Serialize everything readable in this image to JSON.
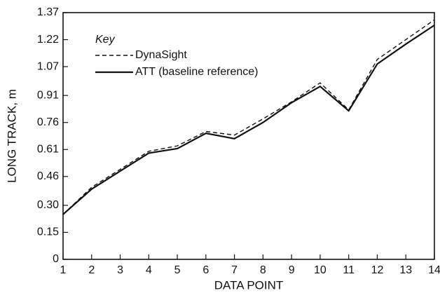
{
  "chart_data": {
    "type": "line",
    "x_label": "DATA POINT",
    "y_label": "LONG TRACK, m",
    "legend_title": "Key",
    "x": [
      1,
      2,
      3,
      4,
      5,
      6,
      7,
      8,
      9,
      10,
      11,
      12,
      13,
      14
    ],
    "series": [
      {
        "name": "DynaSight",
        "color": "#111111",
        "linestyle": "dashed",
        "values": [
          0.25,
          0.4,
          0.5,
          0.6,
          0.63,
          0.71,
          0.69,
          0.78,
          0.875,
          0.98,
          0.83,
          1.11,
          1.22,
          1.33
        ]
      },
      {
        "name": "ATT (baseline reference)",
        "color": "#111111",
        "linestyle": "solid",
        "values": [
          0.25,
          0.39,
          0.49,
          0.59,
          0.615,
          0.7,
          0.67,
          0.76,
          0.87,
          0.96,
          0.825,
          1.085,
          1.195,
          1.3
        ]
      }
    ],
    "xlim": [
      1,
      14
    ],
    "xticks": [
      1,
      2,
      3,
      4,
      5,
      6,
      7,
      8,
      9,
      10,
      11,
      12,
      13,
      14
    ],
    "ylim": [
      0,
      1.37
    ],
    "yticks": [
      0,
      0.15,
      {
        "value": 0.3,
        "label": "0.30"
      },
      0.46,
      0.61,
      0.76,
      0.91,
      1.07,
      1.22,
      1.37
    ],
    "grid": false,
    "legend": "upper left"
  }
}
